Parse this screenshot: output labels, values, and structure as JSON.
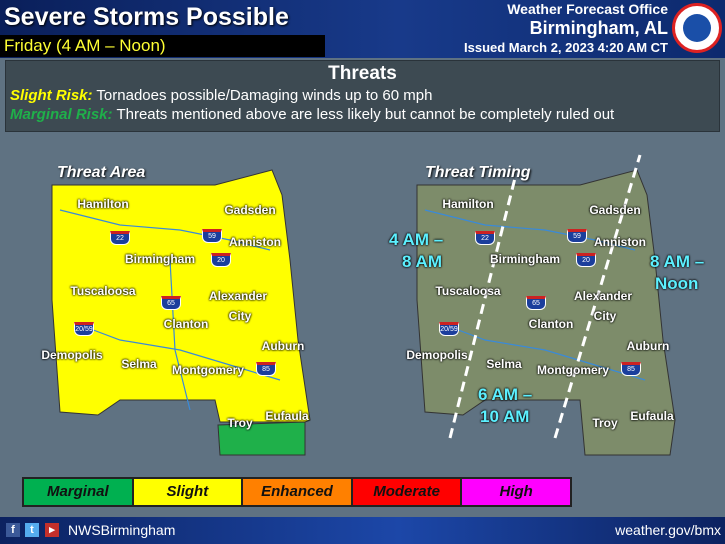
{
  "header": {
    "title": "Severe Storms Possible",
    "subtitle": "Friday (4 AM – Noon)",
    "office": "Weather Forecast Office",
    "city": "Birmingham, AL",
    "issued": "Issued March 2, 2023 4:20 AM CT"
  },
  "threats": {
    "title": "Threats",
    "items": [
      {
        "label": "Slight Risk:",
        "text": "Tornadoes possible/Damaging winds up to 60 mph",
        "color": "#ffff00"
      },
      {
        "label": "Marginal Risk:",
        "text": "Threats mentioned above are less likely but cannot be completely ruled out",
        "color": "#1fb04a"
      }
    ]
  },
  "threat_area": {
    "title": "Threat Area"
  },
  "threat_timing": {
    "title": "Threat Timing",
    "windows": [
      "4 AM –",
      "8 AM",
      "6 AM –",
      "10 AM",
      "8 AM –",
      "Noon"
    ]
  },
  "cities": [
    "Hamilton",
    "Gadsden",
    "Anniston",
    "Birmingham",
    "Tuscaloosa",
    "Alexander",
    "City",
    "Clanton",
    "Demopolis",
    "Selma",
    "Montgomery",
    "Auburn",
    "Troy",
    "Eufaula"
  ],
  "interstates": [
    "22",
    "59",
    "20",
    "65",
    "20/59",
    "85"
  ],
  "legend": [
    {
      "label": "Marginal",
      "color": "#00b050"
    },
    {
      "label": "Slight",
      "color": "#ffff00"
    },
    {
      "label": "Enhanced",
      "color": "#ff8000"
    },
    {
      "label": "Moderate",
      "color": "#ff0000"
    },
    {
      "label": "High",
      "color": "#ff00ff"
    }
  ],
  "colors": {
    "slight": "#ffff00",
    "marginal": "#1fb04a",
    "timing_fill": "#7d8c6a"
  },
  "footer": {
    "handle": "NWSBirmingham",
    "url": "weather.gov/bmx",
    "icons": [
      "facebook-icon",
      "twitter-icon",
      "youtube-icon"
    ]
  }
}
